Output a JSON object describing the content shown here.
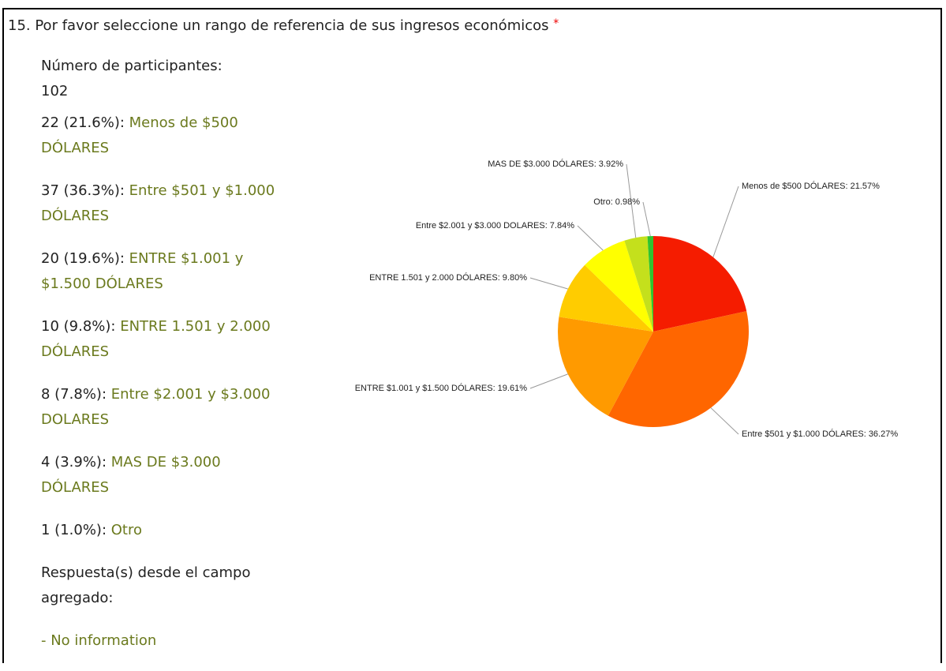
{
  "question": "15. Por favor seleccione un rango de referencia de sus ingresos económicos",
  "required": "*",
  "participants_label": "Número de participantes:",
  "participants": "102",
  "items": [
    {
      "summary": "22 (21.6%):",
      "label": "Menos de $500 DÓLARES"
    },
    {
      "summary": "37 (36.3%):",
      "label": "Entre $501 y $1.000 DÓLARES"
    },
    {
      "summary": "20 (19.6%):",
      "label": "ENTRE $1.001 y $1.500 DÓLARES"
    },
    {
      "summary": "10 (9.8%):",
      "label": "ENTRE 1.501 y 2.000 DÓLARES"
    },
    {
      "summary": "8 (7.8%):",
      "label": "Entre $2.001 y $3.000 DOLARES"
    },
    {
      "summary": "4 (3.9%):",
      "label": "MAS DE $3.000 DÓLARES"
    },
    {
      "summary": "1 (1.0%):",
      "label": "Otro"
    }
  ],
  "aggregate_label": "Respuesta(s) desde el campo agregado:",
  "aggregate_value": "- No information",
  "chart_data": {
    "type": "pie",
    "values": [
      21.57,
      36.27,
      19.61,
      9.8,
      7.84,
      3.92,
      0.98
    ],
    "value_labels": [
      "Menos de $500 DÓLARES: 21.57%",
      "Entre $501 y $1.000 DÓLARES: 36.27%",
      "ENTRE $1.001 y $1.500 DÓLARES: 19.61%",
      "ENTRE 1.501 y 2.000 DÓLARES: 9.80%",
      "Entre $2.001 y $3.000 DOLARES: 7.84%",
      "MAS DE $3.000 DÓLARES: 3.92%",
      "Otro: 0.98%"
    ],
    "colors": [
      "#f51c00",
      "#ff6600",
      "#ff9a00",
      "#ffcc00",
      "#ffff00",
      "#c4e01c",
      "#2fc42f"
    ]
  }
}
